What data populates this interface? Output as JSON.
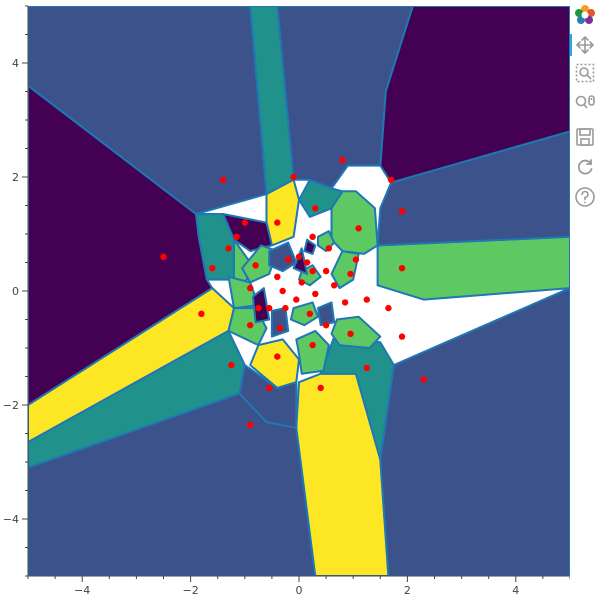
{
  "chart_data": {
    "type": "scatter",
    "title": "",
    "xlabel": "",
    "ylabel": "",
    "xlim": [
      -5,
      5
    ],
    "ylim": [
      -5,
      5
    ],
    "grid": false,
    "x_ticks": [
      -4,
      -2,
      0,
      2,
      4
    ],
    "y_ticks": [
      -4,
      -2,
      0,
      2,
      4
    ],
    "x_tick_labels": [
      "−4",
      "−2",
      "0",
      "2",
      "4"
    ],
    "y_tick_labels": [
      "−4",
      "−2",
      "0",
      "2",
      "4"
    ],
    "point_color": "#ff0000",
    "edge_color": "#1f77b4",
    "palette": [
      "#440154",
      "#3b528b",
      "#21918c",
      "#5ec962",
      "#fde725"
    ],
    "regions": [
      {
        "color": "#440154",
        "polygon": [
          [
            2.1,
            5
          ],
          [
            5,
            5
          ],
          [
            5,
            2.8
          ],
          [
            1.7,
            1.9
          ],
          [
            1.5,
            2.2
          ],
          [
            1.6,
            3.5
          ]
        ]
      },
      {
        "color": "#3b528b",
        "polygon": [
          [
            -0.9,
            5
          ],
          [
            2.1,
            5
          ],
          [
            1.6,
            3.5
          ],
          [
            1.5,
            2.2
          ],
          [
            0.9,
            2.2
          ],
          [
            0.6,
            1.8
          ],
          [
            0.2,
            1.95
          ],
          [
            -0.1,
            1.95
          ]
        ]
      },
      {
        "color": "#21918c",
        "polygon": [
          [
            -0.9,
            5
          ],
          [
            -0.4,
            5
          ],
          [
            -0.1,
            1.95
          ],
          [
            -0.4,
            1.7
          ],
          [
            -0.6,
            1.7
          ]
        ]
      },
      {
        "color": "#3b528b",
        "polygon": [
          [
            -5,
            5
          ],
          [
            -0.9,
            5
          ],
          [
            -0.6,
            1.7
          ],
          [
            -1.9,
            1.35
          ],
          [
            -5,
            3.6
          ]
        ]
      },
      {
        "color": "#440154",
        "polygon": [
          [
            -5,
            3.6
          ],
          [
            -1.9,
            1.35
          ],
          [
            -1.85,
            0.95
          ],
          [
            -1.7,
            0.2
          ],
          [
            -1.6,
            0.05
          ],
          [
            -5,
            -2.0
          ]
        ]
      },
      {
        "color": "#fde725",
        "polygon": [
          [
            -5,
            -2.0
          ],
          [
            -1.6,
            0.05
          ],
          [
            -1.2,
            -0.3
          ],
          [
            -1.3,
            -0.7
          ],
          [
            -5,
            -2.65
          ]
        ]
      },
      {
        "color": "#21918c",
        "polygon": [
          [
            -5,
            -2.65
          ],
          [
            -1.3,
            -0.7
          ],
          [
            -1.0,
            -1.3
          ],
          [
            -1.1,
            -1.8
          ],
          [
            -5,
            -3.1
          ]
        ]
      },
      {
        "color": "#3b528b",
        "polygon": [
          [
            -5,
            -3.1
          ],
          [
            -1.1,
            -1.8
          ],
          [
            -0.6,
            -2.3
          ],
          [
            -0.05,
            -2.4
          ],
          [
            0.3,
            -5
          ],
          [
            -5,
            -5
          ]
        ]
      },
      {
        "color": "#fde725",
        "polygon": [
          [
            -0.05,
            -2.4
          ],
          [
            0,
            -1.6
          ],
          [
            0.4,
            -1.45
          ],
          [
            1.05,
            -1.45
          ],
          [
            1.5,
            -2.95
          ],
          [
            1.65,
            -5
          ],
          [
            0.3,
            -5
          ]
        ]
      },
      {
        "color": "#21918c",
        "polygon": [
          [
            0.4,
            -1.45
          ],
          [
            0.65,
            -0.8
          ],
          [
            1.5,
            -0.9
          ],
          [
            1.75,
            -1.3
          ],
          [
            1.5,
            -2.95
          ],
          [
            1.05,
            -1.45
          ]
        ]
      },
      {
        "color": "#3b528b",
        "polygon": [
          [
            1.75,
            -1.3
          ],
          [
            5,
            0.05
          ],
          [
            5,
            -5
          ],
          [
            1.65,
            -5
          ],
          [
            1.5,
            -2.95
          ]
        ]
      },
      {
        "color": "#5ec962",
        "polygon": [
          [
            1.45,
            0.8
          ],
          [
            5,
            0.95
          ],
          [
            5,
            0.05
          ],
          [
            2.3,
            -0.15
          ],
          [
            1.45,
            0.1
          ]
        ]
      },
      {
        "color": "#3b528b",
        "polygon": [
          [
            1.7,
            1.9
          ],
          [
            5,
            2.8
          ],
          [
            5,
            0.95
          ],
          [
            1.45,
            0.8
          ],
          [
            1.5,
            1.45
          ]
        ]
      },
      {
        "color": "#5ec962",
        "polygon": [
          [
            0.6,
            1.45
          ],
          [
            0.8,
            1.75
          ],
          [
            1.05,
            1.75
          ],
          [
            1.4,
            1.45
          ],
          [
            1.45,
            0.8
          ],
          [
            1.2,
            0.65
          ],
          [
            0.8,
            0.7
          ],
          [
            0.6,
            0.9
          ]
        ]
      },
      {
        "color": "#21918c",
        "polygon": [
          [
            0.2,
            1.95
          ],
          [
            0.6,
            1.8
          ],
          [
            0.8,
            1.75
          ],
          [
            0.6,
            1.45
          ],
          [
            0.2,
            1.3
          ],
          [
            0,
            1.6
          ]
        ]
      },
      {
        "color": "#fde725",
        "polygon": [
          [
            -0.6,
            1.7
          ],
          [
            -0.1,
            1.95
          ],
          [
            0,
            1.6
          ],
          [
            -0.1,
            0.95
          ],
          [
            -0.5,
            0.8
          ],
          [
            -0.6,
            1.2
          ]
        ]
      },
      {
        "color": "#440154",
        "polygon": [
          [
            -1.4,
            1.35
          ],
          [
            -0.6,
            1.2
          ],
          [
            -0.5,
            0.8
          ],
          [
            -0.9,
            0.7
          ],
          [
            -1.2,
            0.9
          ]
        ]
      },
      {
        "color": "#21918c",
        "polygon": [
          [
            -1.9,
            1.35
          ],
          [
            -1.4,
            1.35
          ],
          [
            -1.2,
            0.9
          ],
          [
            -1.2,
            0.2
          ],
          [
            -1.7,
            0.2
          ],
          [
            -1.85,
            0.95
          ]
        ]
      },
      {
        "color": "#5ec962",
        "polygon": [
          [
            -1.2,
            0.2
          ],
          [
            -1.0,
            0.05
          ],
          [
            -0.9,
            0.5
          ],
          [
            -1.2,
            0.9
          ]
        ]
      },
      {
        "color": "#5ec962",
        "polygon": [
          [
            -1.05,
            0.4
          ],
          [
            -0.7,
            0.8
          ],
          [
            -0.4,
            0.7
          ],
          [
            -0.55,
            0.3
          ],
          [
            -0.9,
            0.15
          ]
        ]
      },
      {
        "color": "#5ec962",
        "polygon": [
          [
            -1.3,
            0.25
          ],
          [
            -0.9,
            0.15
          ],
          [
            -0.75,
            -0.25
          ],
          [
            -1.2,
            -0.3
          ]
        ]
      },
      {
        "color": "#5ec962",
        "polygon": [
          [
            -1.2,
            -0.3
          ],
          [
            -0.8,
            -0.3
          ],
          [
            -0.6,
            -0.65
          ],
          [
            -0.75,
            -0.95
          ],
          [
            -1.3,
            -0.7
          ]
        ]
      },
      {
        "color": "#fde725",
        "polygon": [
          [
            -0.75,
            -0.95
          ],
          [
            -0.3,
            -0.85
          ],
          [
            0,
            -1.2
          ],
          [
            -0.05,
            -1.6
          ],
          [
            -0.4,
            -1.7
          ],
          [
            -0.9,
            -1.3
          ]
        ]
      },
      {
        "color": "#3b528b",
        "polygon": [
          [
            -1.0,
            -1.3
          ],
          [
            -0.4,
            -1.7
          ],
          [
            -0.05,
            -1.6
          ],
          [
            -0.05,
            -2.4
          ],
          [
            -0.6,
            -2.3
          ],
          [
            -1.1,
            -1.8
          ]
        ]
      },
      {
        "color": "#5ec962",
        "polygon": [
          [
            -0.05,
            -0.85
          ],
          [
            0.3,
            -0.7
          ],
          [
            0.55,
            -0.95
          ],
          [
            0.45,
            -1.4
          ],
          [
            0.05,
            -1.45
          ],
          [
            0,
            -1.1
          ]
        ]
      },
      {
        "color": "#5ec962",
        "polygon": [
          [
            0.7,
            -0.5
          ],
          [
            1.1,
            -0.45
          ],
          [
            1.5,
            -0.8
          ],
          [
            1.3,
            -1.0
          ],
          [
            0.75,
            -0.95
          ],
          [
            0.6,
            -0.75
          ]
        ]
      },
      {
        "color": "#5ec962",
        "polygon": [
          [
            0.6,
            0.3
          ],
          [
            0.8,
            0.7
          ],
          [
            1.1,
            0.65
          ],
          [
            1.0,
            0.2
          ],
          [
            0.75,
            0.05
          ]
        ]
      },
      {
        "color": "#5ec962",
        "polygon": [
          [
            -0.1,
            -0.3
          ],
          [
            0.25,
            -0.2
          ],
          [
            0.35,
            -0.45
          ],
          [
            0.1,
            -0.6
          ],
          [
            -0.15,
            -0.5
          ]
        ]
      },
      {
        "color": "#5ec962",
        "polygon": [
          [
            0.05,
            0.35
          ],
          [
            0.25,
            0.45
          ],
          [
            0.4,
            0.25
          ],
          [
            0.2,
            0.1
          ],
          [
            0.0,
            0.2
          ]
        ]
      },
      {
        "color": "#5ec962",
        "polygon": [
          [
            0.35,
            0.95
          ],
          [
            0.55,
            1.05
          ],
          [
            0.65,
            0.85
          ],
          [
            0.5,
            0.7
          ],
          [
            0.35,
            0.8
          ]
        ]
      },
      {
        "color": "#440154",
        "polygon": [
          [
            -0.65,
            0.05
          ],
          [
            -0.55,
            -0.5
          ],
          [
            -0.8,
            -0.55
          ],
          [
            -0.85,
            -0.1
          ]
        ]
      },
      {
        "color": "#440154",
        "polygon": [
          [
            0.05,
            0.75
          ],
          [
            0.15,
            0.3
          ],
          [
            -0.1,
            0.4
          ]
        ]
      },
      {
        "color": "#440154",
        "polygon": [
          [
            0.15,
            0.9
          ],
          [
            0.3,
            0.8
          ],
          [
            0.25,
            0.65
          ],
          [
            0.1,
            0.7
          ]
        ]
      },
      {
        "color": "#3b528b",
        "polygon": [
          [
            -0.55,
            0.7
          ],
          [
            -0.2,
            0.85
          ],
          [
            -0.05,
            0.5
          ],
          [
            -0.3,
            0.35
          ],
          [
            -0.55,
            0.45
          ]
        ]
      },
      {
        "color": "#3b528b",
        "polygon": [
          [
            -0.5,
            -0.35
          ],
          [
            -0.25,
            -0.3
          ],
          [
            -0.2,
            -0.7
          ],
          [
            -0.5,
            -0.8
          ]
        ]
      },
      {
        "color": "#3b528b",
        "polygon": [
          [
            0.35,
            -0.3
          ],
          [
            0.6,
            -0.2
          ],
          [
            0.65,
            -0.55
          ],
          [
            0.4,
            -0.6
          ]
        ]
      }
    ],
    "points": [
      {
        "x": 0.8,
        "y": 2.3
      },
      {
        "x": 1.7,
        "y": 1.95
      },
      {
        "x": -1.4,
        "y": 1.95
      },
      {
        "x": -0.1,
        "y": 2.0
      },
      {
        "x": 0.3,
        "y": 1.45
      },
      {
        "x": 1.9,
        "y": 1.4
      },
      {
        "x": -1.0,
        "y": 1.2
      },
      {
        "x": -0.4,
        "y": 1.2
      },
      {
        "x": 1.1,
        "y": 1.1
      },
      {
        "x": 0.25,
        "y": 0.95
      },
      {
        "x": -1.15,
        "y": 0.95
      },
      {
        "x": -1.3,
        "y": 0.75
      },
      {
        "x": 0.55,
        "y": 0.75
      },
      {
        "x": -2.5,
        "y": 0.6
      },
      {
        "x": 0.0,
        "y": 0.6
      },
      {
        "x": 0.15,
        "y": 0.5
      },
      {
        "x": -0.2,
        "y": 0.55
      },
      {
        "x": 1.05,
        "y": 0.55
      },
      {
        "x": -1.6,
        "y": 0.4
      },
      {
        "x": -0.8,
        "y": 0.45
      },
      {
        "x": 0.25,
        "y": 0.35
      },
      {
        "x": 0.5,
        "y": 0.35
      },
      {
        "x": 1.9,
        "y": 0.4
      },
      {
        "x": 0.95,
        "y": 0.3
      },
      {
        "x": -0.4,
        "y": 0.25
      },
      {
        "x": 0.05,
        "y": 0.15
      },
      {
        "x": 0.65,
        "y": 0.1
      },
      {
        "x": -0.9,
        "y": 0.05
      },
      {
        "x": -0.3,
        "y": 0.0
      },
      {
        "x": 0.3,
        "y": -0.05
      },
      {
        "x": 1.25,
        "y": -0.15
      },
      {
        "x": 0.85,
        "y": -0.2
      },
      {
        "x": -0.05,
        "y": -0.15
      },
      {
        "x": -0.75,
        "y": -0.3
      },
      {
        "x": -0.55,
        "y": -0.3
      },
      {
        "x": -0.25,
        "y": -0.3
      },
      {
        "x": 1.65,
        "y": -0.3
      },
      {
        "x": -1.8,
        "y": -0.4
      },
      {
        "x": 0.2,
        "y": -0.4
      },
      {
        "x": -0.9,
        "y": -0.6
      },
      {
        "x": 0.5,
        "y": -0.6
      },
      {
        "x": -0.35,
        "y": -0.65
      },
      {
        "x": 0.95,
        "y": -0.75
      },
      {
        "x": 1.9,
        "y": -0.8
      },
      {
        "x": 0.25,
        "y": -0.95
      },
      {
        "x": -0.4,
        "y": -1.15
      },
      {
        "x": -1.25,
        "y": -1.3
      },
      {
        "x": 1.25,
        "y": -1.35
      },
      {
        "x": 2.3,
        "y": -1.55
      },
      {
        "x": -0.55,
        "y": -1.7
      },
      {
        "x": 0.4,
        "y": -1.7
      },
      {
        "x": -0.9,
        "y": -2.35
      }
    ]
  },
  "toolbar": {
    "tools": [
      {
        "name": "bokeh-logo-icon",
        "active": false,
        "interactable": false
      },
      {
        "name": "pan-tool-icon",
        "active": true,
        "interactable": true
      },
      {
        "name": "box-zoom-tool-icon",
        "active": false,
        "interactable": true
      },
      {
        "name": "wheel-zoom-tool-icon",
        "active": false,
        "interactable": true
      },
      {
        "name": "save-tool-icon",
        "active": false,
        "interactable": true
      },
      {
        "name": "reset-tool-icon",
        "active": false,
        "interactable": true
      },
      {
        "name": "help-tool-icon",
        "active": false,
        "interactable": true
      }
    ]
  }
}
